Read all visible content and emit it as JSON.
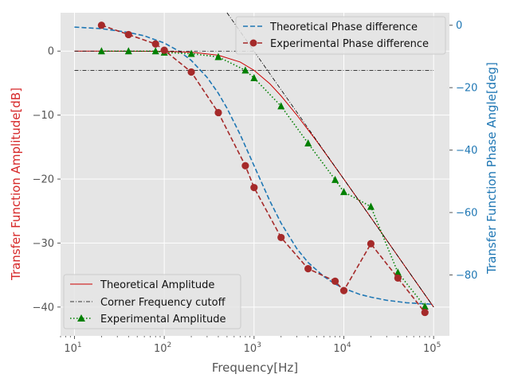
{
  "chart_data": {
    "type": "line",
    "x_scale": "log",
    "xlabel": "Frequency[Hz]",
    "ylabel_left": "Transfer Function Amplitude[dB]",
    "ylabel_right": "Transfer Function Phase Angle[deg]",
    "xlim": [
      7,
      150000
    ],
    "ylim_left": [
      -44.5,
      6
    ],
    "ylim_right": [
      -99.5,
      4
    ],
    "grid": true,
    "x_ticks": [
      10,
      100,
      1000,
      10000,
      100000
    ],
    "x_tick_labels": [
      {
        "base": "10",
        "exp": "1"
      },
      {
        "base": "10",
        "exp": "2"
      },
      {
        "base": "10",
        "exp": "3"
      },
      {
        "base": "10",
        "exp": "4"
      },
      {
        "base": "10",
        "exp": "5"
      }
    ],
    "left_ticks": [
      0,
      -10,
      -20,
      -30,
      -40
    ],
    "left_tick_labels": [
      "0",
      "−10",
      "−20",
      "−30",
      "−40"
    ],
    "right_ticks": [
      0,
      -20,
      -40,
      -60,
      -80
    ],
    "right_tick_labels": [
      "0",
      "−20",
      "−40",
      "−60",
      "−80"
    ],
    "legend_upper": {
      "placement": "top-right",
      "entries": [
        "Theoretical Phase difference",
        "Experimental Phase difference"
      ]
    },
    "legend_lower": {
      "placement": "bottom-left",
      "entries": [
        "Theoretical Amplitude",
        "Corner Frequency cutoff",
        "Experimental Amplitude"
      ]
    },
    "corner_frequency_hz": 1000,
    "cutoff_level_db": -3,
    "series": [
      {
        "name": "Theoretical Amplitude",
        "axis": "left",
        "style": "line",
        "color": "#cc0000",
        "x": [
          10,
          20,
          50,
          100,
          200,
          400,
          700,
          1000,
          1500,
          2000,
          3000,
          5000,
          10000,
          20000,
          50000,
          100000
        ],
        "y": [
          0.0,
          -0.002,
          -0.01,
          -0.04,
          -0.17,
          -0.64,
          -1.7,
          -3.0,
          -5.1,
          -7.0,
          -10.0,
          -14.1,
          -20.0,
          -26.0,
          -34.0,
          -40.0
        ]
      },
      {
        "name": "Corner Frequency cutoff",
        "axis": "left",
        "style": "dashdot",
        "color": "#000000",
        "segments": [
          {
            "x": [
              10,
              100000
            ],
            "y": [
              -3,
              -3
            ]
          },
          {
            "x": [
              10,
              1000
            ],
            "y": [
              0,
              0
            ]
          },
          {
            "x": [
              500,
              100000
            ],
            "y": [
              6,
              -40
            ]
          }
        ]
      },
      {
        "name": "Experimental Amplitude",
        "axis": "left",
        "style": "dotted-marker",
        "marker": "triangle",
        "color": "#008000",
        "x": [
          20,
          40,
          80,
          100,
          200,
          400,
          800,
          1000,
          2000,
          4000,
          8000,
          10000,
          20000,
          40000,
          80000
        ],
        "y": [
          0,
          0,
          0,
          -0.2,
          -0.4,
          -0.9,
          -3.0,
          -4.2,
          -8.6,
          -14.4,
          -20.1,
          -22.0,
          -24.3,
          -34.6,
          -39.9
        ]
      },
      {
        "name": "Theoretical Phase difference",
        "axis": "right",
        "style": "dashed",
        "color": "#1f77b4",
        "x": [
          10,
          20,
          40,
          60,
          100,
          150,
          200,
          300,
          400,
          500,
          700,
          1000,
          1500,
          2000,
          3000,
          4000,
          6000,
          8000,
          10000,
          15000,
          20000,
          30000,
          50000,
          100000
        ],
        "y": [
          -0.6,
          -1.1,
          -2.3,
          -3.4,
          -5.7,
          -8.5,
          -11.3,
          -16.7,
          -21.8,
          -26.6,
          -35.0,
          -45.0,
          -56.3,
          -63.4,
          -71.6,
          -76.0,
          -80.5,
          -82.9,
          -84.3,
          -86.2,
          -87.1,
          -88.1,
          -88.9,
          -89.4
        ]
      },
      {
        "name": "Experimental Phase difference",
        "axis": "right",
        "style": "dashed-marker",
        "marker": "circle",
        "color": "#a52a2a",
        "x": [
          20,
          40,
          80,
          100,
          200,
          400,
          800,
          1000,
          2000,
          4000,
          8000,
          10000,
          20000,
          40000,
          80000
        ],
        "y": [
          0,
          -3,
          -6,
          -8,
          -15,
          -28,
          -45,
          -52,
          -68,
          -78,
          -82,
          -85,
          -70,
          -81,
          -92
        ]
      }
    ]
  }
}
